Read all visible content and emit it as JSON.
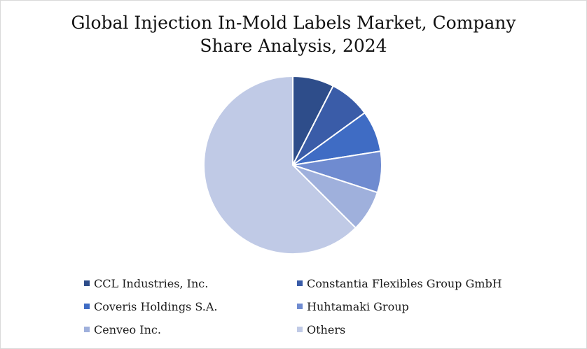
{
  "chart_data": {
    "type": "pie",
    "title": "Global Injection In-Mold Labels Market, Company Share Analysis, 2024",
    "title_lines": [
      "Global Injection In-Mold Labels Market, Company",
      "Share Analysis, 2024"
    ],
    "slices": [
      {
        "label": "CCL Industries, Inc.",
        "value": 7.5,
        "color": "#2e4d8a"
      },
      {
        "label": "Constantia Flexibles Group GmbH",
        "value": 7.5,
        "color": "#3a5ca8"
      },
      {
        "label": "Coveris Holdings S.A.",
        "value": 7.5,
        "color": "#3f6cc4"
      },
      {
        "label": "Huhtamaki Group",
        "value": 7.5,
        "color": "#6f8bd0"
      },
      {
        "label": "Cenveo Inc.",
        "value": 7.5,
        "color": "#9fb0dc"
      },
      {
        "label": "Others",
        "value": 62.5,
        "color": "#c0cae6"
      }
    ],
    "start_angle_deg": 0,
    "direction": "clockwise",
    "legend_placement": "bottom",
    "slice_border_color": "#ffffff"
  }
}
